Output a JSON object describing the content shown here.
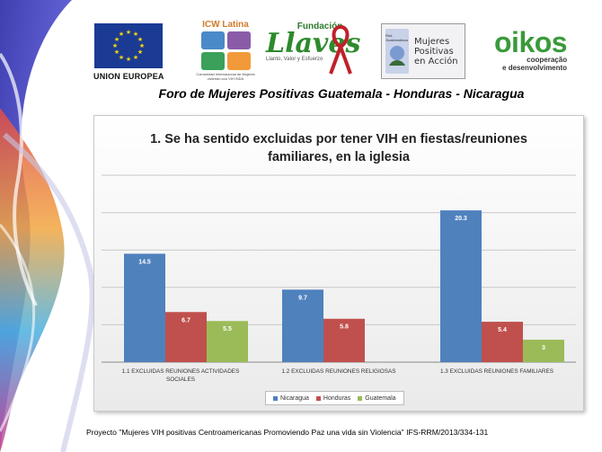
{
  "header": {
    "title": "Foro de Mujeres Positivas Guatemala - Honduras - Nicaragua"
  },
  "logos": {
    "eu": {
      "label": "UNION EUROPEA"
    },
    "icw": {
      "name": "ICW Latina",
      "subtitle": "Comunidad Internacional de Mujeres viviendo con VIH SIDA"
    },
    "llaves": {
      "top": "Fundación",
      "name": "Llaves",
      "tagline": "Llanto, Valor y Esfuerzo"
    },
    "mpa": {
      "network": "Red Guatemalteca",
      "name": "Mujeres Positivas en Acción"
    },
    "oikos": {
      "name": "oikos",
      "sub1": "cooperação",
      "sub2": "e desenvolvimento"
    }
  },
  "chart_data": {
    "type": "bar",
    "title": "1. Se ha sentido excluidas por tener VIH en fiestas/reuniones familiares, en la iglesia",
    "categories": [
      "1.1 EXCLUIDAS  REUNIONES  ACTIVIDADES SOCIALES",
      "1.2 EXCLUIDAS  REUNIONES  RELIGIOSAS",
      "1.3 EXCLUIDAS  REUNIONES  FAMILIARES"
    ],
    "series": [
      {
        "name": "Nicaragua",
        "color": "#4f81bd",
        "values": [
          14.5,
          9.7,
          20.3
        ]
      },
      {
        "name": "Honduras",
        "color": "#c0504d",
        "values": [
          6.7,
          5.8,
          5.4
        ]
      },
      {
        "name": "Guatemala",
        "color": "#9bbb59",
        "values": [
          5.5,
          null,
          3
        ]
      }
    ],
    "ylim": [
      0,
      25
    ],
    "grid": true,
    "legend": "bottom",
    "xlabel": "",
    "ylabel": ""
  },
  "footer": {
    "text": "Proyecto \"Mujeres VIH positivas Centroamericanas Promoviendo Paz una vida sin Violencia\" IFS-RRM/2013/334-131"
  }
}
